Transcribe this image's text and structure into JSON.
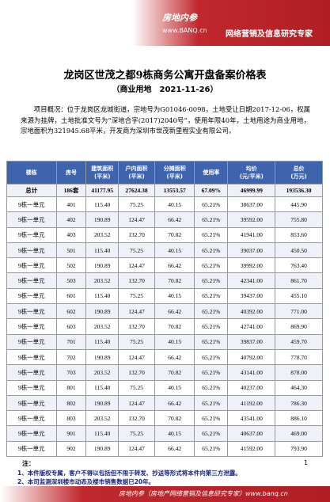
{
  "header": {
    "brand": "房地内参",
    "url": "www.BANQ.cn",
    "slogan": "网络营销及信息研究专家"
  },
  "title": "龙岗区世茂之都9栋商务公寓开盘备案价格表",
  "subtitle": "（商业用地　2021-11-26）",
  "overview": "项目概况：位于龙岗区龙城街道，宗地号为G01046-0098，土地受让日期2017-12-06，权属来源为挂牌，土地批准文号为“深地合字(2017)2040号”，使用年限40年，土地用途为商业用地，宗地面积为321945.68平米，开发商为深圳市世茂新里程实业有限公司。",
  "table": {
    "columns": [
      "楼栋",
      "房号",
      "建筑面积\n(平米)",
      "户内面积\n(平米)",
      "分摊面积\n(平米)",
      "使用率",
      "均价\n(元/平米)",
      "总价\n(万元)"
    ],
    "total": [
      "总计",
      "186套",
      "41177.95",
      "27624.38",
      "13553.57",
      "67.09%",
      "46999.99",
      "193536.30"
    ],
    "rows": [
      [
        "9栋一单元",
        "401",
        "115.40",
        "75.25",
        "40.15",
        "65.21%",
        "38637.00",
        "445.90"
      ],
      [
        "9栋一单元",
        "402",
        "190.89",
        "124.47",
        "66.42",
        "65.21%",
        "39592.00",
        "755.80"
      ],
      [
        "9栋一单元",
        "403",
        "203.52",
        "132.70",
        "70.82",
        "65.21%",
        "41941.00",
        "853.60"
      ],
      [
        "9栋一单元",
        "501",
        "115.40",
        "75.25",
        "40.15",
        "65.21%",
        "39037.00",
        "450.50"
      ],
      [
        "9栋一单元",
        "502",
        "190.89",
        "124.47",
        "66.42",
        "65.21%",
        "39992.00",
        "763.40"
      ],
      [
        "9栋一单元",
        "503",
        "203.52",
        "132.70",
        "70.82",
        "65.21%",
        "42341.00",
        "861.70"
      ],
      [
        "9栋一单元",
        "601",
        "115.40",
        "75.25",
        "40.15",
        "65.21%",
        "39437.00",
        "455.10"
      ],
      [
        "9栋一单元",
        "602",
        "190.89",
        "124.47",
        "66.42",
        "65.21%",
        "40392.00",
        "771.00"
      ],
      [
        "9栋一单元",
        "603",
        "203.52",
        "132.70",
        "70.82",
        "65.21%",
        "42741.00",
        "869.90"
      ],
      [
        "9栋一单元",
        "701",
        "115.40",
        "75.25",
        "40.15",
        "65.21%",
        "39837.00",
        "459.70"
      ],
      [
        "9栋一单元",
        "702",
        "190.89",
        "124.47",
        "66.42",
        "65.21%",
        "40792.00",
        "778.70"
      ],
      [
        "9栋一单元",
        "703",
        "203.52",
        "132.70",
        "70.82",
        "65.21%",
        "43141.00",
        "878.00"
      ],
      [
        "9栋一单元",
        "801",
        "115.40",
        "75.25",
        "40.15",
        "65.21%",
        "40237.00",
        "464.30"
      ],
      [
        "9栋一单元",
        "802",
        "190.89",
        "124.47",
        "66.42",
        "65.21%",
        "41192.00",
        "786.30"
      ],
      [
        "9栋一单元",
        "803",
        "203.52",
        "132.70",
        "70.82",
        "65.21%",
        "43541.00",
        "886.10"
      ],
      [
        "9栋一单元",
        "901",
        "115.40",
        "75.25",
        "40.15",
        "65.21%",
        "40637.00",
        "469.00"
      ],
      [
        "9栋一单元",
        "902",
        "190.89",
        "124.47",
        "66.42",
        "65.21%",
        "41592.00",
        "793.90"
      ]
    ]
  },
  "notes": {
    "label": "注：",
    "page": "1",
    "items": [
      "1、本件版权专属，客户不得以包括但不限于转发、抄送等形式将本件向第三方泄露。",
      "2、本司监测深圳楼市动态及楼市销售数据已20年。"
    ]
  },
  "footer": "房地内参（房地产网络营销及信息研究专家）www.banq.cn"
}
